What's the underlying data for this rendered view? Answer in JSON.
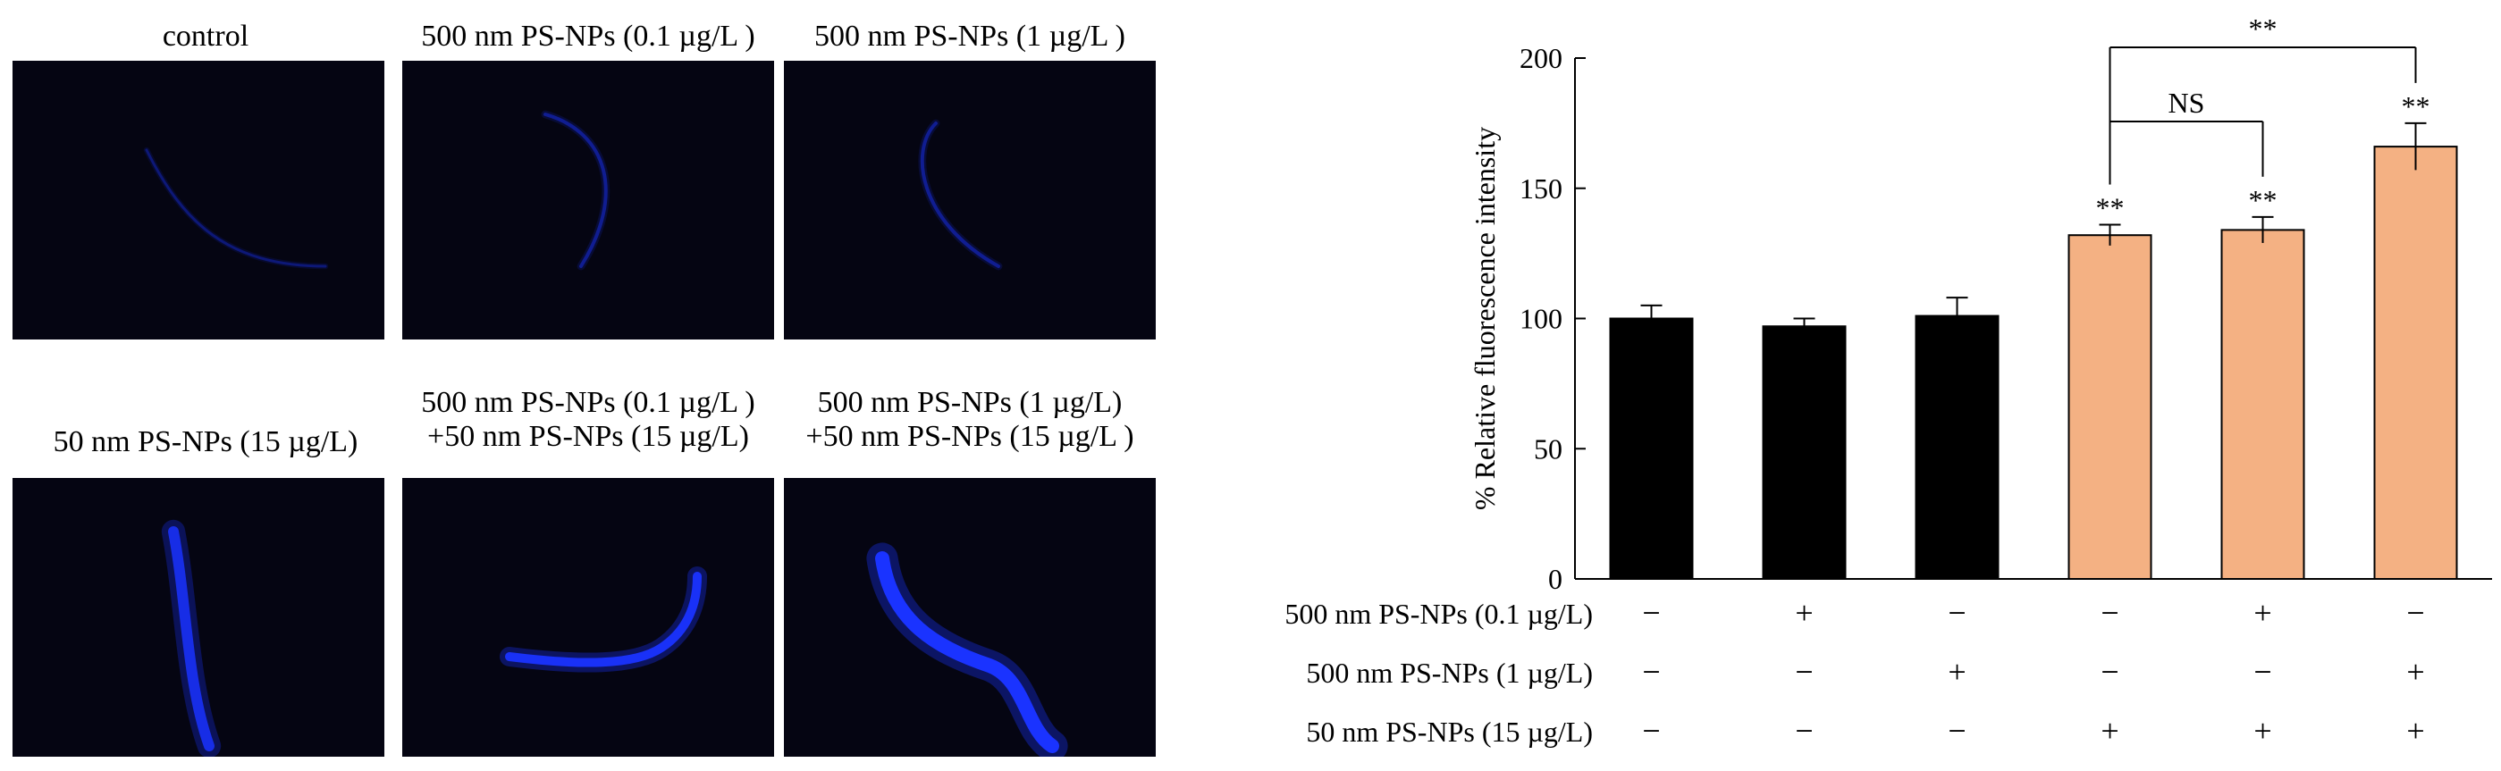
{
  "images": {
    "panels": [
      {
        "caption_lines": [
          "control"
        ]
      },
      {
        "caption_lines": [
          "500 nm PS-NPs (0.1 µg/L )"
        ]
      },
      {
        "caption_lines": [
          "500 nm PS-NPs (1 µg/L )"
        ]
      },
      {
        "caption_lines": [
          "50 nm PS-NPs (15 µg/L)"
        ]
      },
      {
        "caption_lines": [
          "500 nm PS-NPs (0.1 µg/L )",
          "+50 nm PS-NPs (15 µg/L)"
        ]
      },
      {
        "caption_lines": [
          "500 nm PS-NPs (1 µg/L)",
          "+50 nm PS-NPs (15 µg/L )"
        ]
      }
    ],
    "colors": {
      "background": "#050512",
      "fluorescence": "#1a33ff"
    }
  },
  "chart_data": {
    "type": "bar",
    "ylabel": "% Relative fluorescence intensity",
    "ylim": [
      0,
      200
    ],
    "yticks": [
      0,
      50,
      100,
      150,
      200
    ],
    "grid": false,
    "categories": [
      "1",
      "2",
      "3",
      "4",
      "5",
      "6"
    ],
    "values": [
      100,
      97,
      101,
      132,
      134,
      166
    ],
    "errors": [
      5,
      3,
      7,
      4,
      5,
      9
    ],
    "bar_colors": [
      "#000000",
      "#000000",
      "#000000",
      "#f4b183",
      "#f4b183",
      "#f4b183"
    ],
    "bar_labels": [
      "",
      "",
      "",
      "**",
      "**",
      "**"
    ],
    "conditions": [
      {
        "label": "500 nm PS-NPs (0.1 µg/L)",
        "signs": [
          "−",
          "+",
          "−",
          "−",
          "+",
          "−"
        ]
      },
      {
        "label": "500 nm PS-NPs (1 µg/L)",
        "signs": [
          "−",
          "−",
          "+",
          "−",
          "−",
          "+"
        ]
      },
      {
        "label": "50 nm PS-NPs (15 µg/L)",
        "signs": [
          "−",
          "−",
          "−",
          "+",
          "+",
          "+"
        ]
      }
    ],
    "comparisons": [
      {
        "from": 3,
        "to": 4,
        "label": "NS"
      },
      {
        "from": 3,
        "to": 5,
        "label": "**"
      }
    ]
  }
}
